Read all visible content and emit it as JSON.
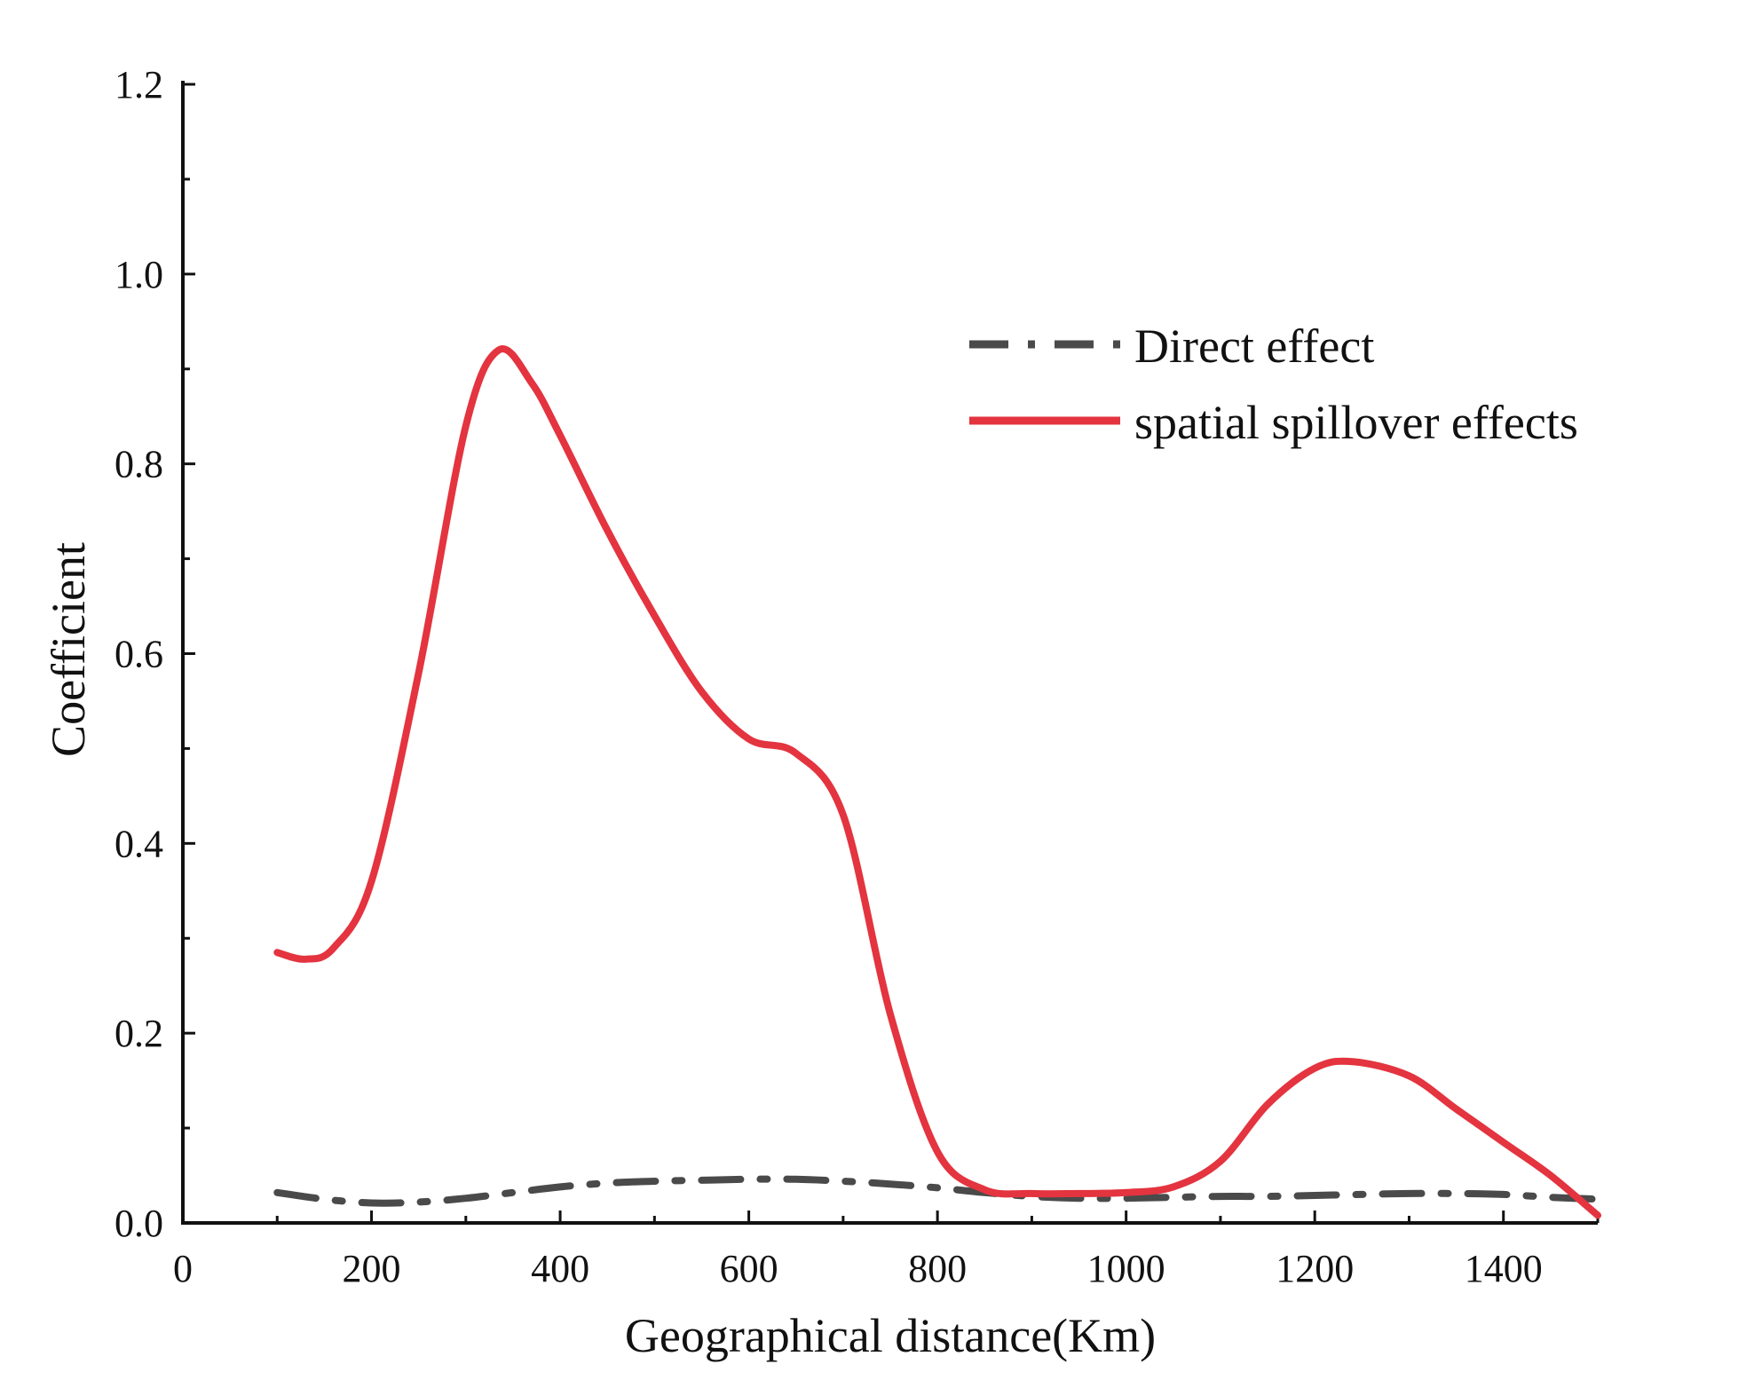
{
  "chart_data": {
    "type": "line",
    "title": "",
    "xlabel": "Geographical distance(Km)",
    "ylabel": "Coefficient",
    "xlim": [
      0,
      1500
    ],
    "ylim": [
      0,
      1.2
    ],
    "x_ticks": [
      0,
      200,
      400,
      600,
      800,
      1000,
      1200,
      1400
    ],
    "x_tick_labels": [
      "0",
      "200",
      "400",
      "600",
      "800",
      "1000",
      "1200",
      "1400"
    ],
    "y_ticks": [
      0,
      0.2,
      0.4,
      0.6,
      0.8,
      1.0,
      1.2
    ],
    "y_tick_labels": [
      "0.0",
      "0.2",
      "0.4",
      "0.6",
      "0.8",
      "1.0",
      "1.2"
    ],
    "grid": false,
    "legend_position": "top-right",
    "series": [
      {
        "name": "Direct effect",
        "color": "#4a4a4a",
        "style": "dash-dot",
        "x": [
          100,
          150,
          200,
          250,
          300,
          350,
          400,
          450,
          500,
          550,
          600,
          650,
          700,
          750,
          800,
          850,
          900,
          950,
          1000,
          1050,
          1100,
          1150,
          1200,
          1250,
          1300,
          1350,
          1400,
          1450,
          1500
        ],
        "y": [
          0.032,
          0.025,
          0.021,
          0.022,
          0.026,
          0.032,
          0.038,
          0.042,
          0.044,
          0.045,
          0.046,
          0.046,
          0.044,
          0.041,
          0.037,
          0.032,
          0.028,
          0.026,
          0.026,
          0.027,
          0.028,
          0.028,
          0.029,
          0.03,
          0.031,
          0.031,
          0.03,
          0.027,
          0.025
        ]
      },
      {
        "name": "spatial spillover effects",
        "color": "#e3343f",
        "style": "solid",
        "x": [
          100,
          130,
          160,
          200,
          250,
          300,
          335,
          370,
          400,
          450,
          500,
          550,
          600,
          650,
          700,
          750,
          800,
          850,
          900,
          950,
          1000,
          1050,
          1100,
          1150,
          1200,
          1240,
          1300,
          1350,
          1400,
          1450,
          1500
        ],
        "y": [
          0.285,
          0.278,
          0.29,
          0.36,
          0.58,
          0.84,
          0.92,
          0.885,
          0.83,
          0.73,
          0.64,
          0.56,
          0.51,
          0.495,
          0.43,
          0.22,
          0.075,
          0.035,
          0.031,
          0.031,
          0.032,
          0.038,
          0.065,
          0.125,
          0.163,
          0.17,
          0.155,
          0.12,
          0.085,
          0.05,
          0.008
        ]
      }
    ]
  }
}
